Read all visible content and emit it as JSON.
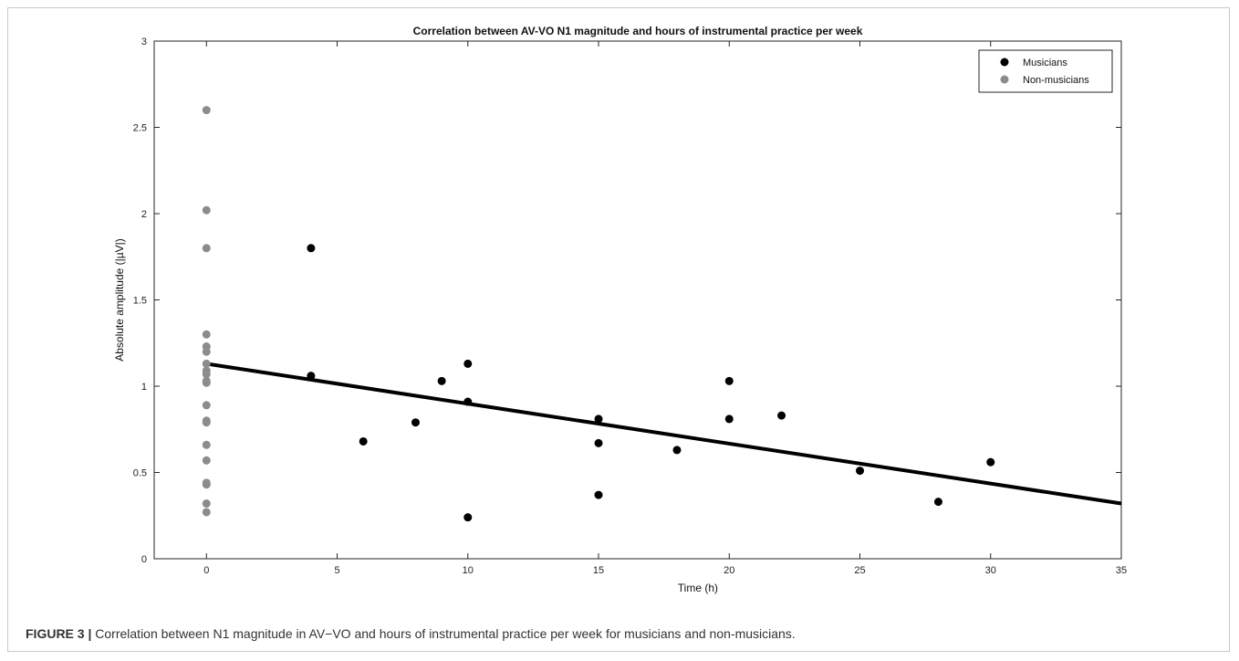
{
  "chart_data": {
    "type": "scatter",
    "title": "Correlation between AV-VO N1 magnitude and hours of instrumental practice per week",
    "xlabel": "Time (h)",
    "ylabel": "Absolute amplitude (|µV|)",
    "xlim": [
      -2,
      35
    ],
    "ylim": [
      0,
      3
    ],
    "xticks": [
      0,
      5,
      10,
      15,
      20,
      25,
      30,
      35
    ],
    "yticks": [
      0,
      0.5,
      1,
      1.5,
      2,
      2.5,
      3
    ],
    "xtick_labels": [
      "0",
      "5",
      "10",
      "15",
      "20",
      "25",
      "30",
      "35"
    ],
    "ytick_labels": [
      "0",
      "0.5",
      "1",
      "1.5",
      "2",
      "2.5",
      "3"
    ],
    "grid": false,
    "legend_position": "top-right",
    "series": [
      {
        "name": "Musicians",
        "color": "#000000",
        "points": [
          [
            4,
            1.8
          ],
          [
            4,
            1.06
          ],
          [
            6,
            0.68
          ],
          [
            8,
            0.79
          ],
          [
            9,
            1.03
          ],
          [
            10,
            1.13
          ],
          [
            10,
            0.91
          ],
          [
            10,
            0.24
          ],
          [
            15,
            0.81
          ],
          [
            15,
            0.67
          ],
          [
            15,
            0.37
          ],
          [
            18,
            0.63
          ],
          [
            20,
            1.03
          ],
          [
            20,
            0.81
          ],
          [
            22,
            0.83
          ],
          [
            25,
            0.51
          ],
          [
            28,
            0.33
          ],
          [
            30,
            0.56
          ]
        ]
      },
      {
        "name": "Non-musicians",
        "color": "#8c8c8c",
        "points": [
          [
            0,
            2.6
          ],
          [
            0,
            2.02
          ],
          [
            0,
            1.8
          ],
          [
            0,
            1.3
          ],
          [
            0,
            1.23
          ],
          [
            0,
            1.2
          ],
          [
            0,
            1.13
          ],
          [
            0,
            1.09
          ],
          [
            0,
            1.07
          ],
          [
            0,
            1.03
          ],
          [
            0,
            1.02
          ],
          [
            0,
            0.89
          ],
          [
            0,
            0.8
          ],
          [
            0,
            0.79
          ],
          [
            0,
            0.66
          ],
          [
            0,
            0.57
          ],
          [
            0,
            0.44
          ],
          [
            0,
            0.43
          ],
          [
            0,
            0.32
          ],
          [
            0,
            0.27
          ]
        ]
      }
    ],
    "fit_line": {
      "color": "#000000",
      "points": [
        [
          0,
          1.13
        ],
        [
          35,
          0.32
        ]
      ]
    }
  },
  "caption": {
    "label": "FIGURE 3",
    "separator": "|",
    "text": "Correlation between N1 magnitude in AV−VO and hours of instrumental practice per week for musicians and non-musicians."
  }
}
